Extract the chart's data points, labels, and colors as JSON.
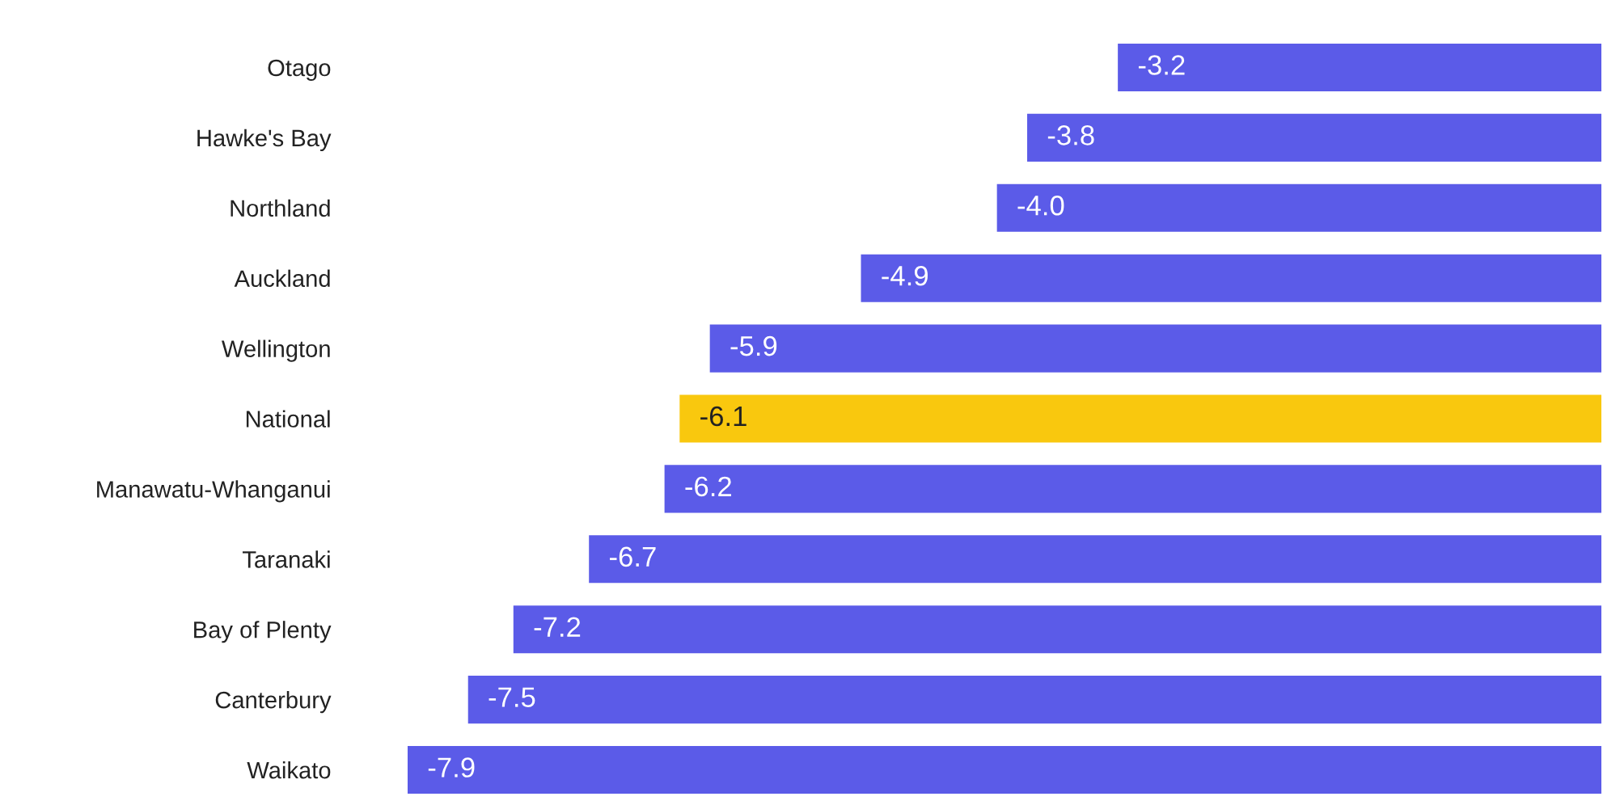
{
  "chart_data": {
    "type": "bar",
    "orientation": "horizontal",
    "categories": [
      "Otago",
      "Hawke's Bay",
      "Northland",
      "Auckland",
      "Wellington",
      "National",
      "Manawatu-Whanganui",
      "Taranaki",
      "Bay of Plenty",
      "Canterbury",
      "Waikato"
    ],
    "values": [
      -3.2,
      -3.8,
      -4.0,
      -4.9,
      -5.9,
      -6.1,
      -6.2,
      -6.7,
      -7.2,
      -7.5,
      -7.9
    ],
    "colors": [
      "#5b5be8",
      "#5b5be8",
      "#5b5be8",
      "#5b5be8",
      "#5b5be8",
      "#f9c80e",
      "#5b5be8",
      "#5b5be8",
      "#5b5be8",
      "#5b5be8",
      "#5b5be8"
    ],
    "value_labels": [
      "-3.2",
      "-3.8",
      "-4.0",
      "-4.9",
      "-5.9",
      "-6.1",
      "-6.2",
      "-6.7",
      "-7.2",
      "-7.5",
      "-7.9"
    ],
    "xlim": [
      -7.9,
      0
    ],
    "tick_labels": "y",
    "grid": false,
    "legend": false
  }
}
